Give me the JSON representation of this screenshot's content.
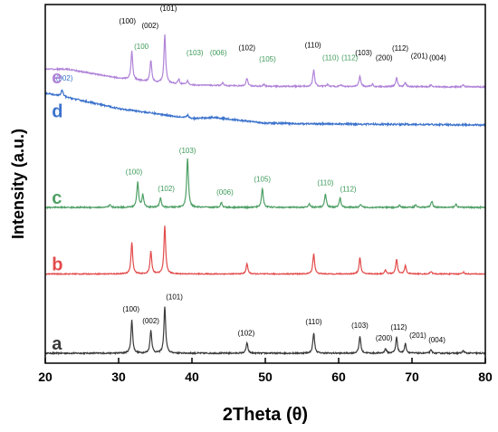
{
  "chart_data": {
    "type": "line",
    "xlabel": "2Theta (θ)",
    "ylabel": "Intensity (a.u.)",
    "xlim": [
      20,
      80
    ],
    "x_ticks": [
      "20",
      "30",
      "40",
      "50",
      "60",
      "70",
      "80"
    ],
    "series": [
      {
        "name": "a",
        "color": "#3a3a3a",
        "baseline": 0.0,
        "background": [],
        "noise": 0.02,
        "peaks": [
          [
            31.8,
            0.52
          ],
          [
            34.4,
            0.36
          ],
          [
            36.3,
            0.74
          ],
          [
            47.5,
            0.16
          ],
          [
            56.6,
            0.32
          ],
          [
            62.9,
            0.27
          ],
          [
            66.4,
            0.07
          ],
          [
            67.9,
            0.25
          ],
          [
            69.1,
            0.15
          ],
          [
            72.6,
            0.05
          ],
          [
            77.0,
            0.04
          ]
        ],
        "labels": [
          {
            "text": "(100)",
            "x": 31.7,
            "y": 0.66,
            "color": "#000000"
          },
          {
            "text": "(002)",
            "x": 34.4,
            "y": 0.47,
            "color": "#000000"
          },
          {
            "text": "(101)",
            "x": 37.6,
            "y": 0.85,
            "color": "#000000"
          },
          {
            "text": "(102)",
            "x": 47.4,
            "y": 0.28,
            "color": "#000000"
          },
          {
            "text": "(110)",
            "x": 56.6,
            "y": 0.46,
            "color": "#000000"
          },
          {
            "text": "(103)",
            "x": 62.9,
            "y": 0.4,
            "color": "#000000"
          },
          {
            "text": "(200)",
            "x": 66.2,
            "y": 0.2,
            "color": "#000000"
          },
          {
            "text": "(112)",
            "x": 68.2,
            "y": 0.37,
            "color": "#000000"
          },
          {
            "text": "(201)",
            "x": 70.8,
            "y": 0.24,
            "color": "#000000"
          },
          {
            "text": "(004)",
            "x": 73.4,
            "y": 0.17,
            "color": "#000000"
          }
        ]
      },
      {
        "name": "b",
        "color": "#e34a4a",
        "baseline": 1.25,
        "background": [],
        "noise": 0.015,
        "peaks": [
          [
            31.8,
            0.5
          ],
          [
            34.4,
            0.35
          ],
          [
            36.3,
            0.76
          ],
          [
            47.5,
            0.16
          ],
          [
            56.6,
            0.32
          ],
          [
            62.9,
            0.26
          ],
          [
            66.4,
            0.06
          ],
          [
            67.9,
            0.23
          ],
          [
            69.1,
            0.13
          ],
          [
            72.6,
            0.04
          ],
          [
            77.0,
            0.03
          ]
        ],
        "labels": []
      },
      {
        "name": "c",
        "color": "#4fa066",
        "baseline": 2.3,
        "background": [],
        "noise": 0.02,
        "peaks": [
          [
            28.8,
            0.04
          ],
          [
            32.6,
            0.4
          ],
          [
            33.3,
            0.2
          ],
          [
            35.7,
            0.15
          ],
          [
            39.4,
            0.78
          ],
          [
            44.0,
            0.08
          ],
          [
            49.6,
            0.3
          ],
          [
            56.0,
            0.05
          ],
          [
            58.2,
            0.22
          ],
          [
            60.2,
            0.15
          ],
          [
            63.0,
            0.04
          ],
          [
            68.3,
            0.03
          ],
          [
            70.5,
            0.04
          ],
          [
            72.7,
            0.1
          ],
          [
            76.0,
            0.05
          ]
        ],
        "labels": [
          {
            "text": "(100)",
            "x": 32.1,
            "y": 2.82,
            "color": "#3c9a58"
          },
          {
            "text": "(102)",
            "x": 36.5,
            "y": 2.56,
            "color": "#3c9a58"
          },
          {
            "text": "(103)",
            "x": 39.4,
            "y": 3.16,
            "color": "#3c9a58"
          },
          {
            "text": "(006)",
            "x": 44.5,
            "y": 2.5,
            "color": "#3c9a58"
          },
          {
            "text": "(105)",
            "x": 49.6,
            "y": 2.71,
            "color": "#3c9a58"
          },
          {
            "text": "(110)",
            "x": 58.2,
            "y": 2.65,
            "color": "#3c9a58"
          },
          {
            "text": "(112)",
            "x": 61.3,
            "y": 2.55,
            "color": "#3c9a58"
          }
        ]
      },
      {
        "name": "d",
        "color": "#3b72cc",
        "baseline": 3.6,
        "background": [
          [
            20,
            0.5
          ],
          [
            22,
            0.46
          ],
          [
            26,
            0.36
          ],
          [
            30,
            0.26
          ],
          [
            35,
            0.18
          ],
          [
            40,
            0.1
          ],
          [
            43,
            0.12
          ],
          [
            46,
            0.08
          ],
          [
            50,
            0.03
          ],
          [
            55,
            0.02
          ],
          [
            80,
            0.0
          ]
        ],
        "noise": 0.025,
        "peaks": [
          [
            22.3,
            0.1
          ],
          [
            39.4,
            0.05
          ]
        ],
        "labels": [
          {
            "text": "(002)",
            "x": 22.6,
            "y": 4.3,
            "color": "#3b72cc"
          }
        ]
      },
      {
        "name": "e",
        "color": "#b083d8",
        "baseline": 4.2,
        "background": [
          [
            20,
            0.28
          ],
          [
            23,
            0.28
          ],
          [
            26,
            0.22
          ],
          [
            30,
            0.14
          ],
          [
            35,
            0.07
          ],
          [
            40,
            0.03
          ],
          [
            50,
            0.01
          ],
          [
            80,
            0.0
          ]
        ],
        "noise": 0.02,
        "peaks": [
          [
            31.8,
            0.45
          ],
          [
            34.4,
            0.34
          ],
          [
            36.3,
            0.76
          ],
          [
            38.2,
            0.08
          ],
          [
            39.4,
            0.06
          ],
          [
            44.2,
            0.04
          ],
          [
            47.5,
            0.12
          ],
          [
            49.8,
            0.03
          ],
          [
            56.6,
            0.26
          ],
          [
            58.5,
            0.03
          ],
          [
            60.3,
            0.03
          ],
          [
            62.9,
            0.17
          ],
          [
            64.6,
            0.04
          ],
          [
            67.9,
            0.14
          ],
          [
            69.1,
            0.07
          ],
          [
            72.6,
            0.03
          ],
          [
            77.0,
            0.03
          ]
        ],
        "labels": [
          {
            "text": "(100)",
            "x": 31.2,
            "y": 5.2,
            "color": "#000000"
          },
          {
            "text": "(002)",
            "x": 34.3,
            "y": 5.13,
            "color": "#000000"
          },
          {
            "text": "(101)",
            "x": 36.8,
            "y": 5.4,
            "color": "#000000"
          },
          {
            "text": "(100",
            "x": 33.1,
            "y": 4.8,
            "color": "#3c9a58"
          },
          {
            "text": "(103)",
            "x": 40.4,
            "y": 4.7,
            "color": "#3c9a58"
          },
          {
            "text": "(006)",
            "x": 43.6,
            "y": 4.7,
            "color": "#3c9a58"
          },
          {
            "text": "(102)",
            "x": 47.5,
            "y": 4.78,
            "color": "#000000"
          },
          {
            "text": "(105)",
            "x": 50.3,
            "y": 4.6,
            "color": "#3c9a58"
          },
          {
            "text": "(110)",
            "x": 56.5,
            "y": 4.82,
            "color": "#000000"
          },
          {
            "text": "(110)",
            "x": 58.9,
            "y": 4.62,
            "color": "#3c9a58"
          },
          {
            "text": "(112)",
            "x": 61.5,
            "y": 4.62,
            "color": "#3c9a58"
          },
          {
            "text": "(103)",
            "x": 63.4,
            "y": 4.7,
            "color": "#000000"
          },
          {
            "text": "(200)",
            "x": 66.2,
            "y": 4.62,
            "color": "#000000"
          },
          {
            "text": "(112)",
            "x": 68.4,
            "y": 4.77,
            "color": "#000000"
          },
          {
            "text": "(201)",
            "x": 71.0,
            "y": 4.65,
            "color": "#000000"
          },
          {
            "text": "(004)",
            "x": 73.5,
            "y": 4.62,
            "color": "#000000"
          }
        ]
      }
    ]
  }
}
